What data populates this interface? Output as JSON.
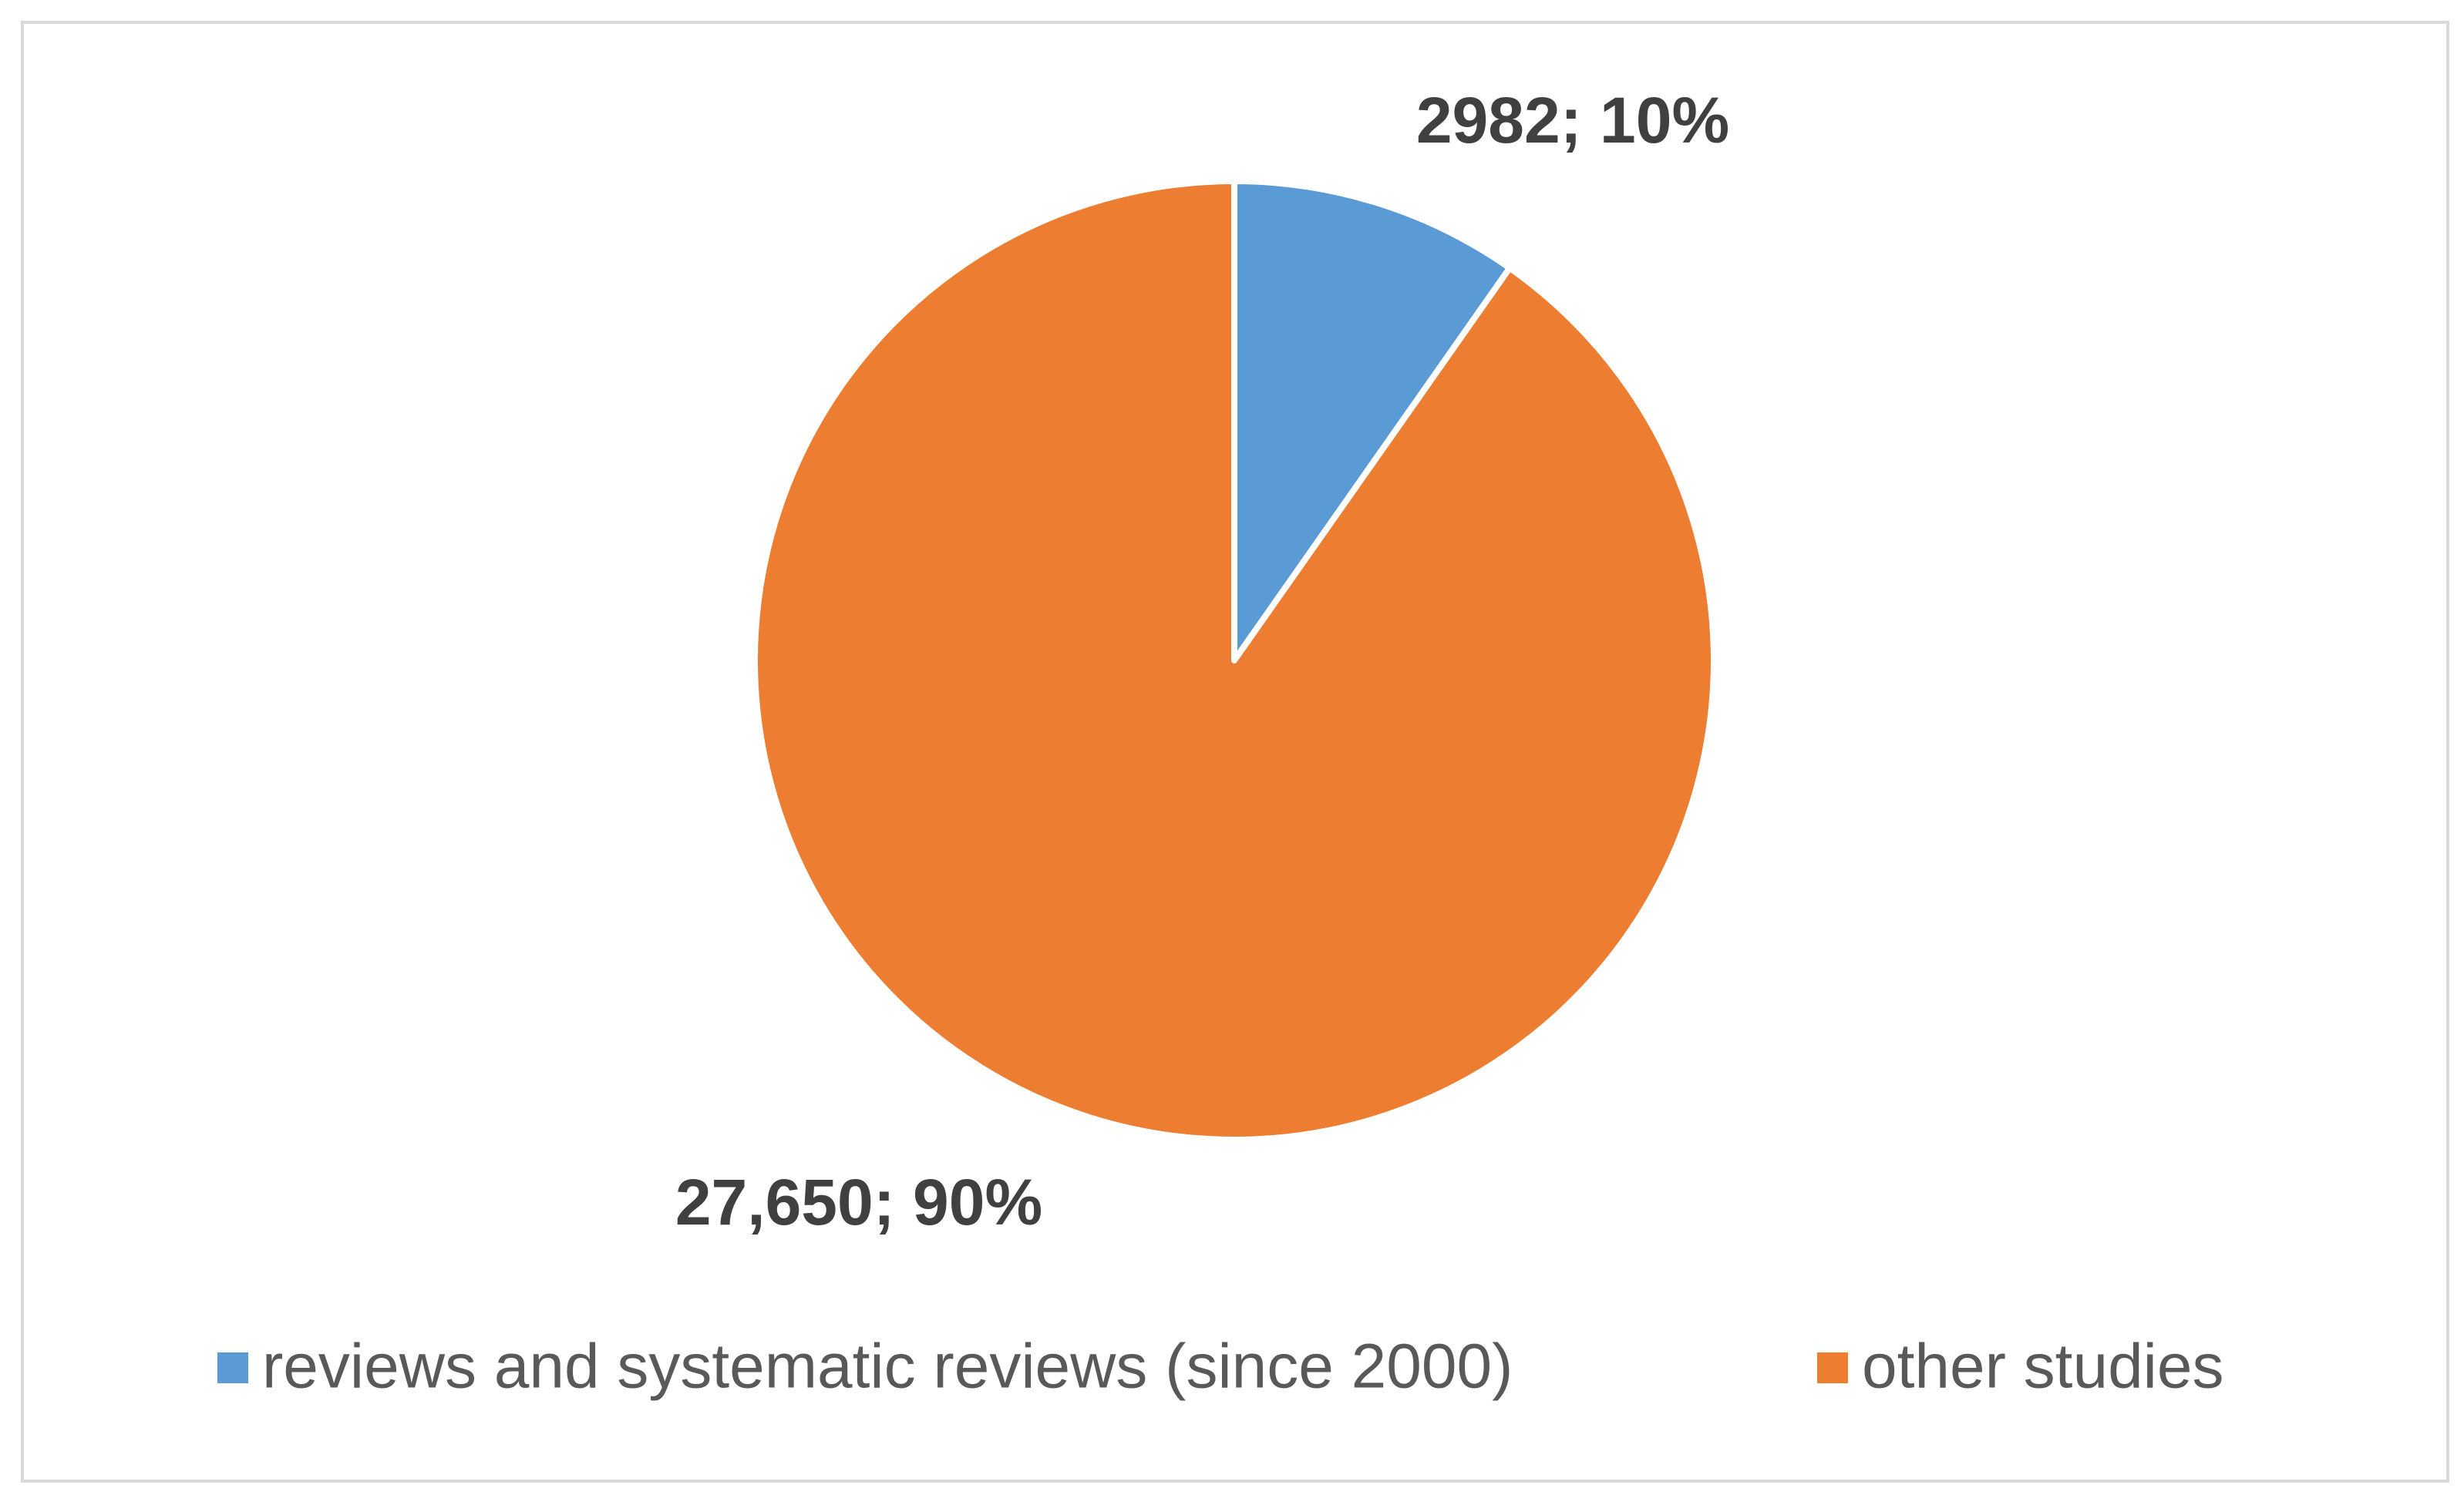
{
  "chart_data": {
    "type": "pie",
    "categories": [
      "reviews and systematic reviews (since 2000)",
      "other studies"
    ],
    "values": [
      2982,
      27650
    ],
    "value_labels": [
      "2982; 10%",
      "27,650; 90%"
    ],
    "colors": [
      "#5b9bd5",
      "#ed7d31"
    ],
    "legend": "bottom"
  }
}
